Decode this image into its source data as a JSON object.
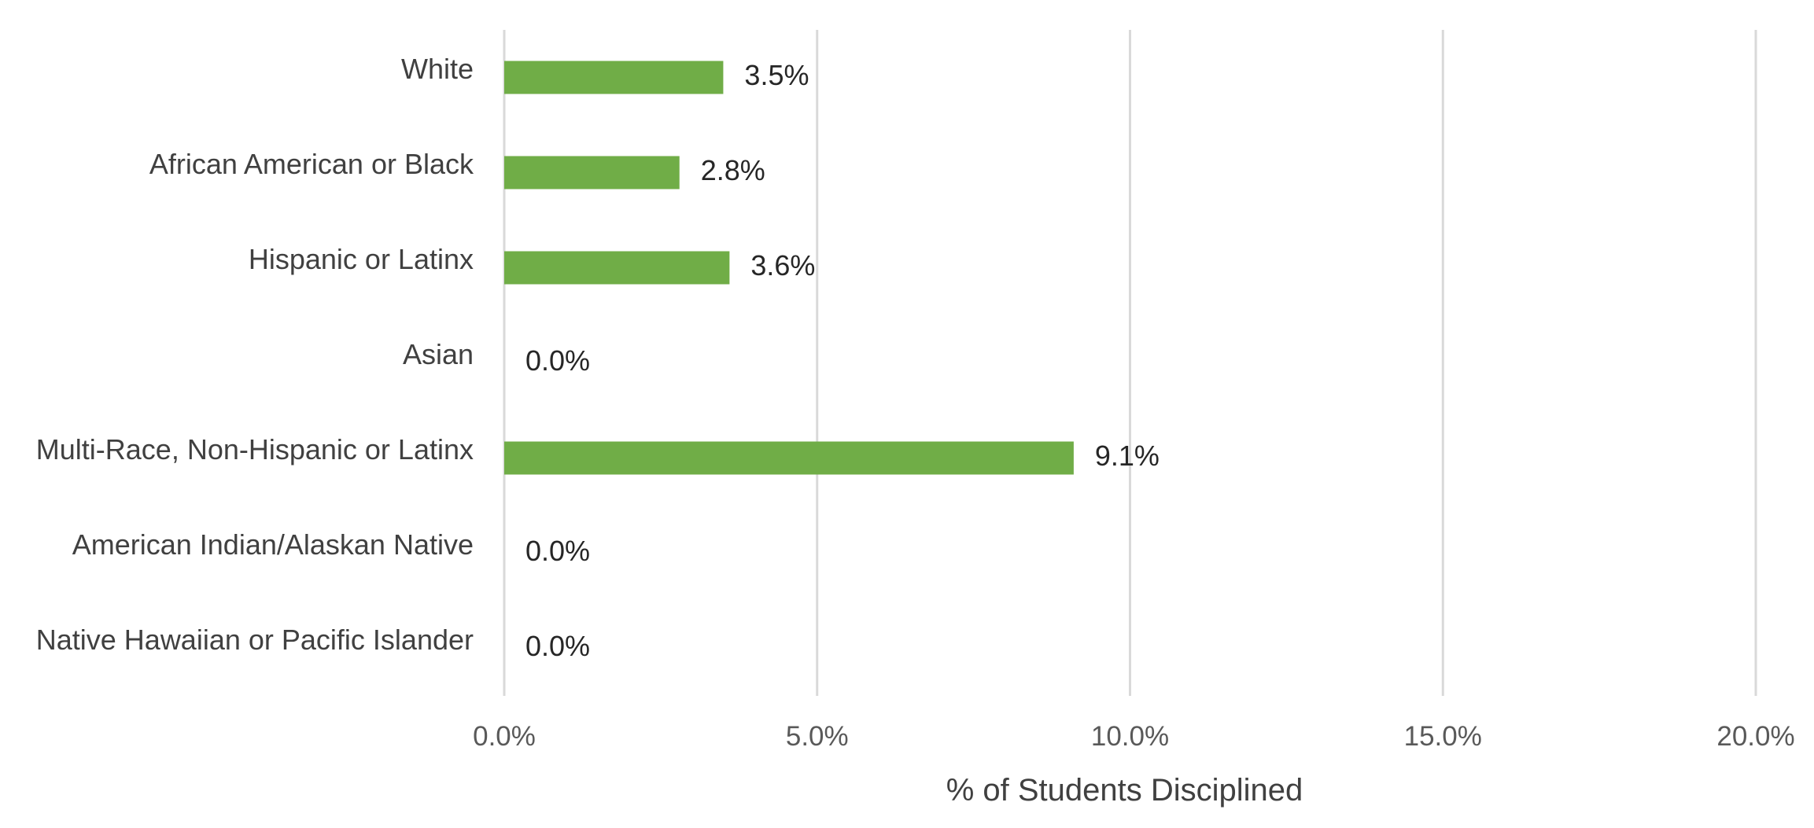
{
  "chart_data": {
    "type": "bar",
    "orientation": "horizontal",
    "title": "",
    "xlabel": "% of Students Disciplined",
    "ylabel": "",
    "xlim": [
      0,
      20
    ],
    "xticks": [
      0,
      5,
      10,
      15,
      20
    ],
    "xtick_labels": [
      "0.0%",
      "5.0%",
      "10.0%",
      "15.0%",
      "20.0%"
    ],
    "grid": "vertical",
    "legend": "none",
    "categories": [
      "White",
      "African American or Black",
      "Hispanic or Latinx",
      "Asian",
      "Multi-Race, Non-Hispanic or Latinx",
      "American Indian/Alaskan Native",
      "Native Hawaiian or Pacific Islander"
    ],
    "values": [
      3.5,
      2.8,
      3.6,
      0.0,
      9.1,
      0.0,
      0.0
    ],
    "data_labels": [
      "3.5%",
      "2.8%",
      "3.6%",
      "0.0%",
      "9.1%",
      "0.0%",
      "0.0%"
    ],
    "bar_color": "#70ad47"
  }
}
